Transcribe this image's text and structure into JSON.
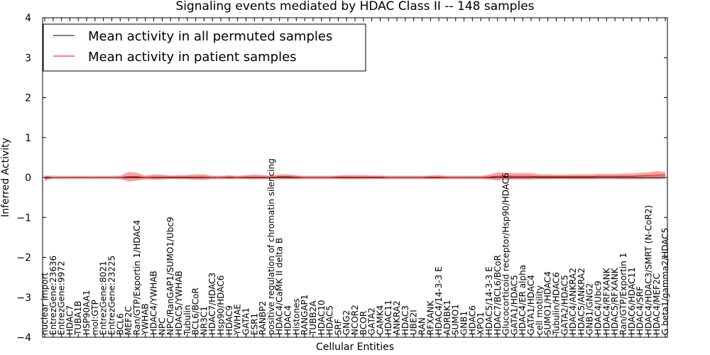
{
  "chart_data": {
    "type": "line",
    "title": "Signaling events mediated by HDAC Class II -- 148 samples",
    "xlabel": "Cellular Entities",
    "ylabel": "Inferred Activity",
    "ylim": [
      -4,
      4
    ],
    "yticks": [
      -4,
      -3,
      -2,
      -1,
      0,
      1,
      2,
      3,
      4
    ],
    "ytick_labels": [
      "−4",
      "−3",
      "−2",
      "−1",
      "0",
      "1",
      "2",
      "3",
      "4"
    ],
    "legend": {
      "placement": "top-left",
      "entries": [
        {
          "label": "Mean activity in all permuted samples",
          "color": "#000000"
        },
        {
          "label": "Mean activity in patient samples",
          "color": "#ff0000"
        }
      ]
    },
    "colors": {
      "permuted": "#000000",
      "patient": "#ff0000",
      "patient_band": "#f08080",
      "permuted_band": "#c8c8c8"
    },
    "categories": [
      "nuclear import",
      "EntrezGene:23636",
      "EntrezGene:9972",
      "HDAC7",
      "TUBA1B",
      "HSP90AA1",
      "mol:GTP",
      "EntrezGene:8021",
      "EntrezGene:23225",
      "BCL6",
      "MEF2C",
      "Ran/GTP/Exportin 1/HDAC4",
      "YWHAB",
      "HDAC4/YWHAB",
      "NPC",
      "NPC/RanGAP1/SUMO1/Ubc9",
      "HDAC5/YWHAB",
      "Tubulin",
      "BCL6/BCoR",
      "NR3C1",
      "HDAC7/HDAC3",
      "Hsp90/HDAC6",
      "HDAC9",
      "YWHAE",
      "GATA1",
      "ESR1",
      "RANBP2",
      "positive regulation of chromatin silencing",
      "HDAC4/CaMK II delta B",
      "HDAC4",
      "Histones",
      "RANGAP1",
      "TUBB2A",
      "HDAC10",
      "HDAC5",
      "SRF",
      "GNG2",
      "NCOR2",
      "BCOR",
      "GATA2",
      "CAMK4",
      "HDAC11",
      "ANKRA2",
      "HDAC3",
      "UBE2I",
      "RAN",
      "RFXANK",
      "HDAC4/14-3-3 E",
      "ADRBK1",
      "SUMO1",
      "GNB1",
      "HDAC6",
      "XPO1",
      "HDAC5/14-3-3 E",
      "HDAC7/BCL6/BCoR",
      "Glucocorticoid receptor/Hsp90/HDAC6",
      "GATA1/HDAC5",
      "HDAC4/ER alpha",
      "GATA1/HDAC4",
      "cell motility",
      "SUMO1/HDAC4",
      "Tubulin/HDAC6",
      "GATA2/HDAC5",
      "HDAC4/ANKRA2",
      "HDAC5/ANKRA2",
      "GNB1/GNG2",
      "HDAC4/Ubc9",
      "HDAC4/RFXANK",
      "HDAC5/RFXANK",
      "Ran/GTP/Exportin 1",
      "HDAC6/HDAC11",
      "HDAC4/SRF",
      "HDAC4/HDAC3/SMRT (N-CoR2)",
      "HDAC4/MEF2C",
      "G beta1/gamma2/HDAC5"
    ],
    "series": [
      {
        "name": "Mean activity in all permuted samples",
        "values": [
          0.0,
          0.0,
          0.0,
          0.0,
          0.0,
          0.0,
          0.0,
          0.0,
          0.0,
          0.0,
          0.0,
          0.0,
          0.0,
          0.0,
          0.0,
          0.0,
          0.0,
          0.0,
          0.0,
          0.0,
          0.0,
          0.0,
          0.0,
          0.0,
          0.0,
          0.0,
          0.0,
          0.0,
          0.0,
          0.0,
          0.0,
          0.0,
          0.0,
          0.0,
          0.0,
          0.0,
          0.0,
          0.0,
          0.0,
          0.0,
          0.0,
          0.0,
          0.0,
          0.0,
          0.0,
          0.0,
          0.0,
          0.0,
          0.0,
          0.0,
          0.0,
          0.0,
          0.0,
          0.0,
          0.0,
          0.0,
          0.0,
          0.0,
          0.0,
          0.0,
          0.0,
          0.0,
          0.0,
          0.0,
          0.0,
          0.0,
          0.0,
          0.0,
          0.0,
          0.0,
          0.0,
          0.0,
          0.0,
          0.0,
          0.0
        ],
        "band": [
          0.06,
          0.05,
          0.05,
          0.05,
          0.05,
          0.05,
          0.05,
          0.05,
          0.05,
          0.05,
          0.05,
          0.05,
          0.05,
          0.05,
          0.05,
          0.05,
          0.05,
          0.05,
          0.05,
          0.05,
          0.05,
          0.05,
          0.05,
          0.05,
          0.05,
          0.05,
          0.05,
          0.05,
          0.05,
          0.05,
          0.05,
          0.05,
          0.05,
          0.05,
          0.05,
          0.05,
          0.05,
          0.05,
          0.05,
          0.05,
          0.05,
          0.05,
          0.05,
          0.05,
          0.05,
          0.05,
          0.05,
          0.05,
          0.05,
          0.05,
          0.05,
          0.05,
          0.05,
          0.05,
          0.05,
          0.05,
          0.05,
          0.05,
          0.05,
          0.05,
          0.05,
          0.05,
          0.05,
          0.05,
          0.05,
          0.05,
          0.05,
          0.05,
          0.05,
          0.05,
          0.05,
          0.05,
          0.05,
          0.05,
          0.05
        ]
      },
      {
        "name": "Mean activity in patient samples",
        "values": [
          -0.02,
          0.0,
          0.0,
          0.0,
          0.0,
          0.0,
          0.0,
          0.0,
          0.0,
          0.0,
          0.02,
          0.02,
          0.0,
          0.01,
          0.01,
          0.01,
          0.01,
          0.01,
          0.01,
          0.01,
          0.0,
          0.0,
          0.01,
          0.0,
          0.01,
          0.01,
          0.01,
          0.0,
          0.02,
          0.02,
          0.01,
          0.0,
          0.0,
          0.0,
          0.0,
          0.01,
          0.01,
          0.01,
          0.01,
          0.01,
          0.01,
          0.0,
          0.0,
          0.0,
          0.0,
          0.0,
          0.01,
          0.01,
          0.0,
          0.0,
          0.0,
          0.0,
          0.0,
          0.01,
          0.03,
          0.03,
          0.03,
          0.03,
          0.03,
          0.02,
          0.02,
          0.02,
          0.02,
          0.02,
          0.02,
          0.02,
          0.03,
          0.03,
          0.03,
          0.03,
          0.03,
          0.04,
          0.05,
          0.06,
          0.06
        ],
        "band": [
          0.06,
          0.02,
          0.02,
          0.02,
          0.02,
          0.02,
          0.02,
          0.02,
          0.02,
          0.04,
          0.12,
          0.1,
          0.04,
          0.07,
          0.06,
          0.04,
          0.05,
          0.05,
          0.07,
          0.07,
          0.04,
          0.03,
          0.05,
          0.03,
          0.05,
          0.06,
          0.05,
          0.04,
          0.06,
          0.06,
          0.05,
          0.03,
          0.03,
          0.03,
          0.03,
          0.04,
          0.05,
          0.05,
          0.05,
          0.04,
          0.04,
          0.03,
          0.03,
          0.03,
          0.03,
          0.03,
          0.04,
          0.05,
          0.03,
          0.03,
          0.03,
          0.03,
          0.03,
          0.06,
          0.1,
          0.09,
          0.08,
          0.08,
          0.08,
          0.06,
          0.06,
          0.05,
          0.05,
          0.06,
          0.06,
          0.06,
          0.06,
          0.06,
          0.06,
          0.07,
          0.07,
          0.08,
          0.08,
          0.1,
          0.08
        ]
      }
    ]
  }
}
